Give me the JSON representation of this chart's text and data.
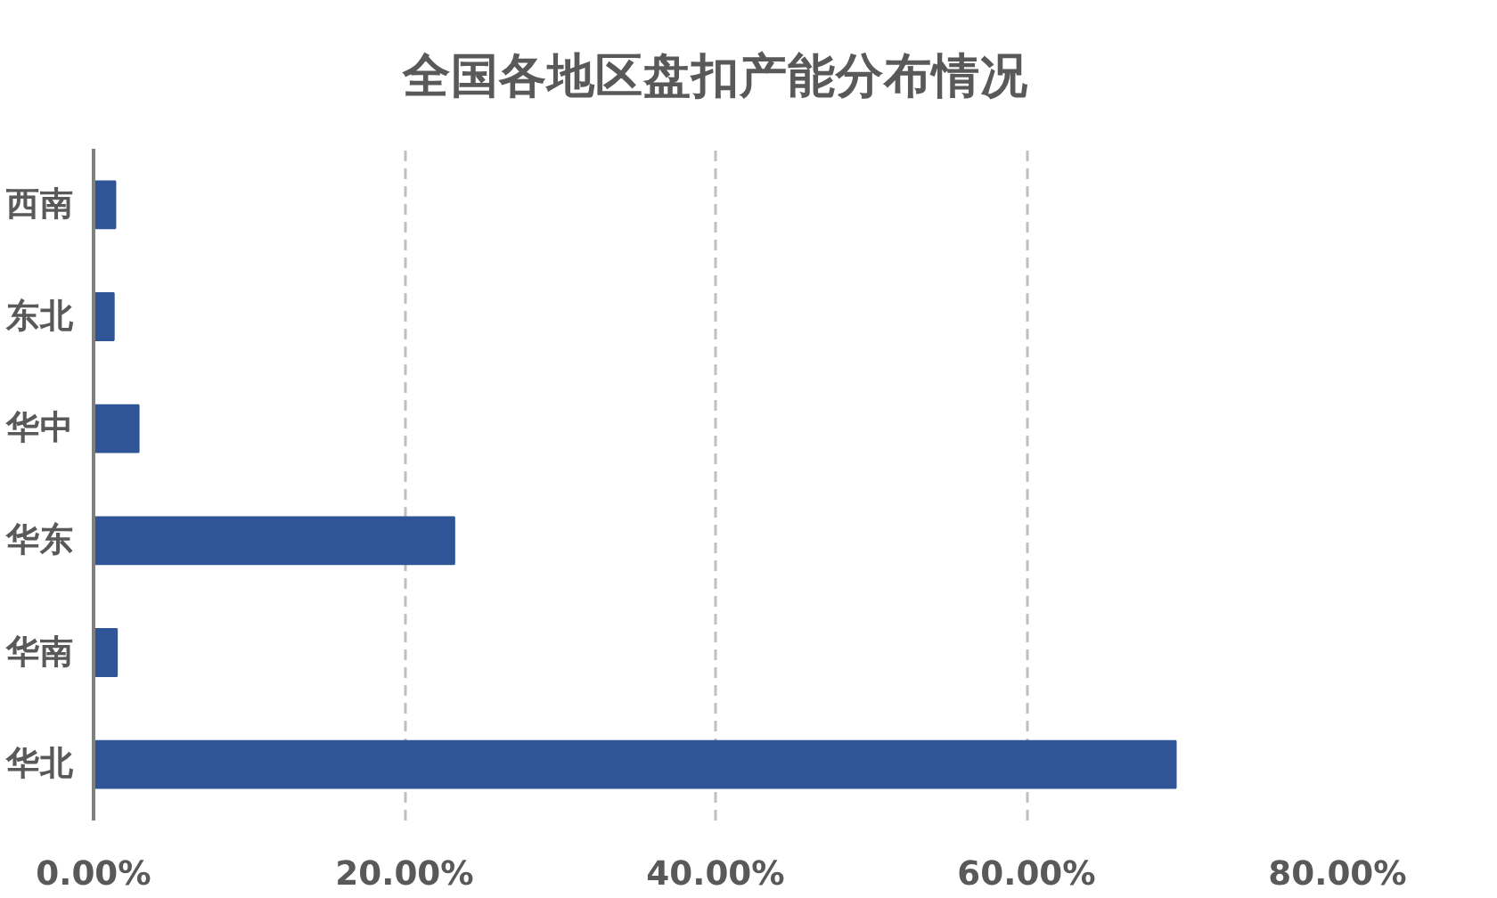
{
  "chart_data": {
    "type": "bar",
    "orientation": "horizontal",
    "title": "全国各地区盘扣产能分布情况",
    "categories": [
      "西南",
      "东北",
      "华中",
      "华东",
      "华南",
      "华北"
    ],
    "values": [
      1.4,
      1.3,
      2.9,
      23.2,
      1.5,
      69.6
    ],
    "color": "#2f5597",
    "xlim": [
      0,
      80
    ],
    "xticks": [
      {
        "value": 0,
        "label": "0.00%"
      },
      {
        "value": 20,
        "label": "20.00%"
      },
      {
        "value": 40,
        "label": "40.00%"
      },
      {
        "value": 60,
        "label": "60.00%"
      },
      {
        "value": 80,
        "label": "80.00%"
      }
    ],
    "grid": "x"
  }
}
